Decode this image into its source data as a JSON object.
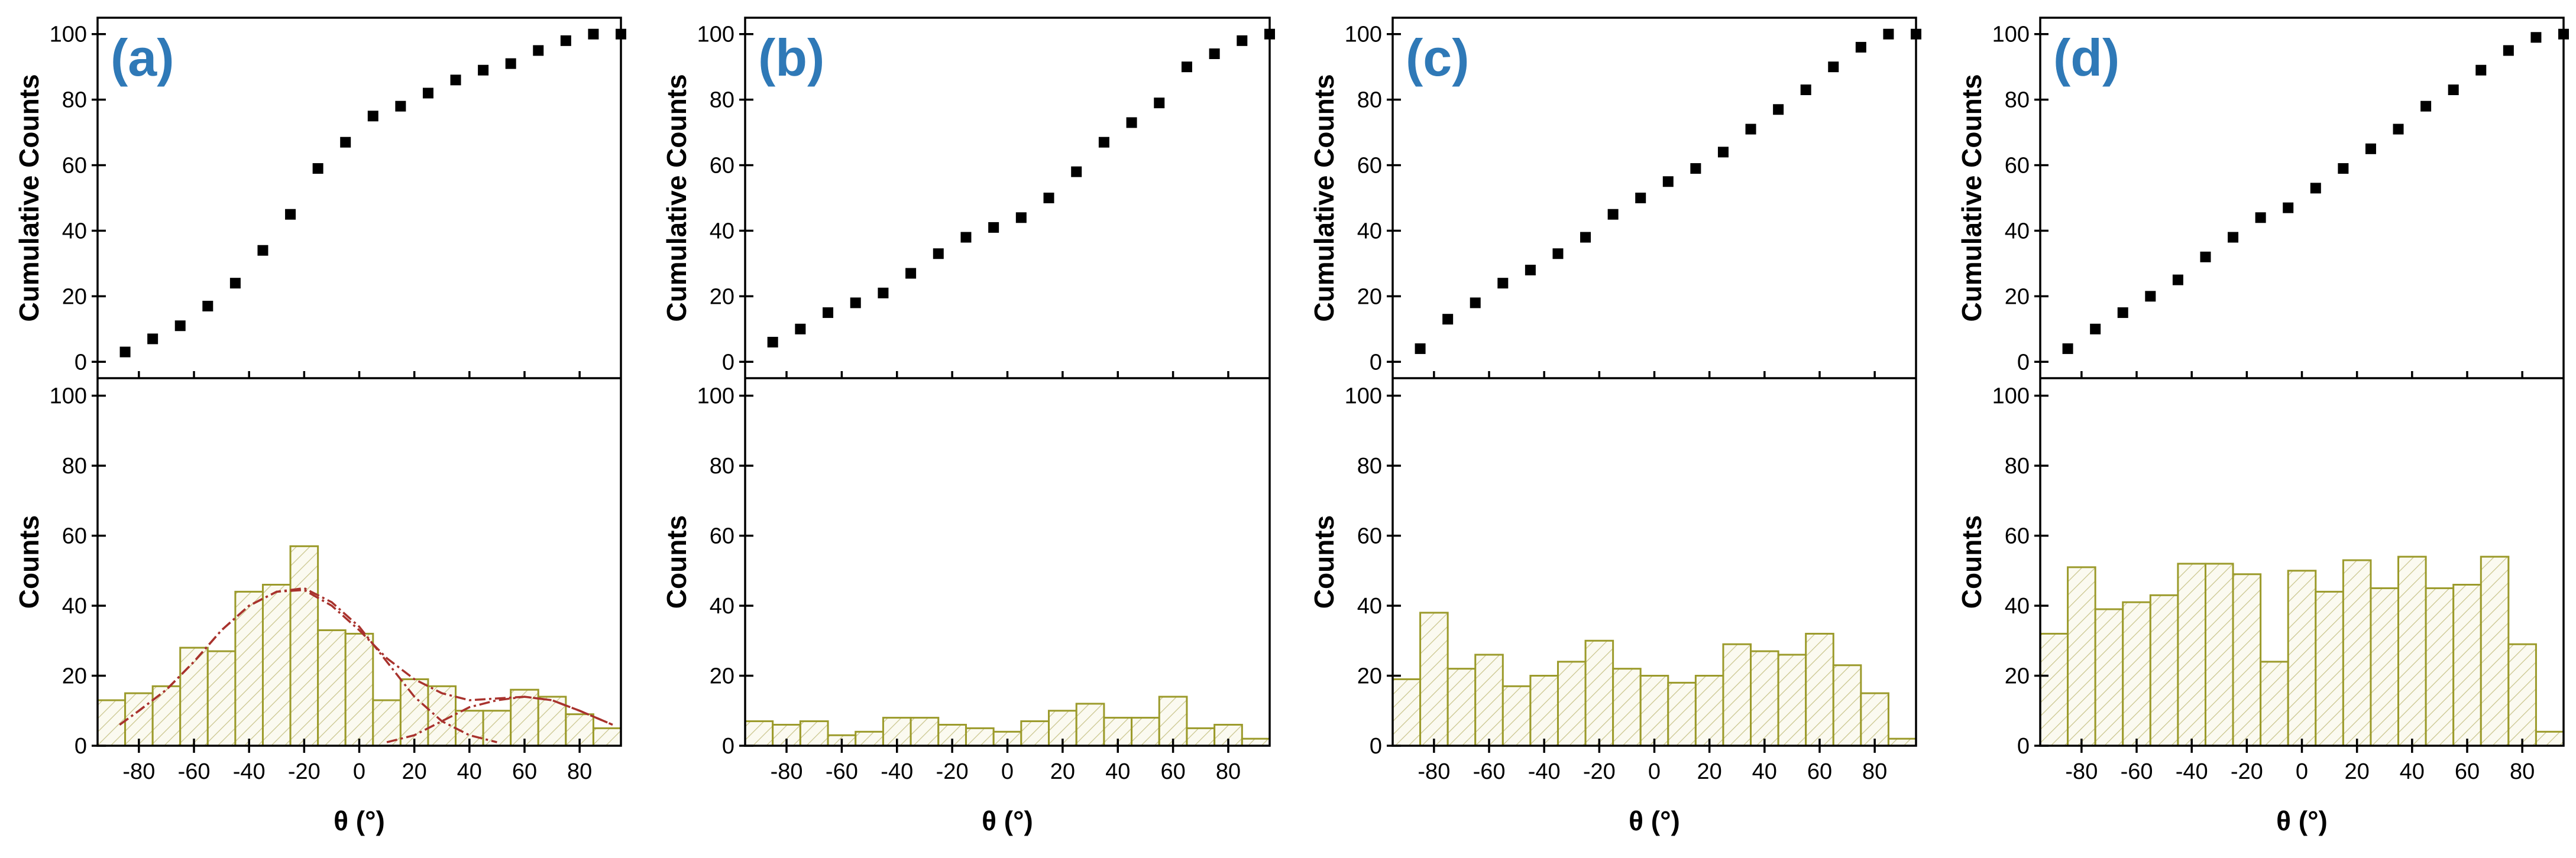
{
  "figure": {
    "xlabel": "θ (°)",
    "colors": {
      "bar_edge": "#9b9a2a",
      "bar_fill": "#fbfaf0",
      "hatch": "#c9c58c",
      "fit_curve": "#a8322d",
      "panel_label": "#2f79b7",
      "point": "#000000",
      "axis": "#000000"
    }
  },
  "chart_data": [
    {
      "panel_label": "(a)",
      "type": "scatter+bar",
      "x_ticks": [
        "-80",
        "-60",
        "-40",
        "-20",
        "0",
        "20",
        "40",
        "60",
        "80"
      ],
      "xlim": [
        -95,
        95
      ],
      "top": {
        "ylabel": "Cumulative Counts",
        "ylim": [
          -5,
          105
        ],
        "y_ticks": [
          "0",
          "20",
          "40",
          "60",
          "80",
          "100"
        ],
        "x": [
          -85,
          -75,
          -65,
          -55,
          -45,
          -35,
          -25,
          -15,
          -5,
          5,
          15,
          25,
          35,
          45,
          55,
          65,
          75,
          85,
          95
        ],
        "values": [
          3,
          7,
          11,
          17,
          24,
          34,
          45,
          59,
          67,
          75,
          78,
          82,
          86,
          89,
          91,
          95,
          98,
          100,
          100
        ]
      },
      "bottom": {
        "ylabel": "Counts",
        "ylim": [
          0,
          105
        ],
        "y_ticks": [
          "0",
          "20",
          "40",
          "60",
          "80",
          "100"
        ],
        "bin_width": 10,
        "x": [
          -90,
          -80,
          -70,
          -60,
          -50,
          -40,
          -30,
          -20,
          -10,
          0,
          10,
          20,
          30,
          40,
          50,
          60,
          70,
          80,
          90
        ],
        "values": [
          13,
          15,
          17,
          28,
          27,
          44,
          46,
          57,
          33,
          32,
          13,
          19,
          17,
          10,
          10,
          16,
          14,
          9,
          5
        ],
        "fit_curves": [
          {
            "name": "total fit",
            "x": [
              -87,
              -80,
              -70,
              -60,
              -50,
              -40,
              -30,
              -20,
              -10,
              0,
              10,
              20,
              30,
              40,
              50,
              60,
              70,
              80,
              92
            ],
            "y": [
              6,
              10,
              16,
              24,
              33,
              40,
              44,
              44.5,
              40,
              33,
              25,
              19,
              15,
              13,
              13.5,
              14,
              13,
              10,
              6
            ]
          },
          {
            "name": "peak 1",
            "x": [
              -87,
              -80,
              -70,
              -60,
              -50,
              -40,
              -30,
              -20,
              -10,
              0,
              10,
              20,
              30,
              40,
              50
            ],
            "y": [
              6,
              10,
              16,
              24,
              33,
              40,
              44,
              45,
              41,
              34,
              24,
              14,
              7,
              3,
              1
            ]
          },
          {
            "name": "peak 2",
            "x": [
              10,
              20,
              30,
              40,
              50,
              60,
              70,
              80,
              92
            ],
            "y": [
              1,
              3,
              7,
              11,
              13,
              14,
              13,
              10,
              6
            ]
          }
        ]
      }
    },
    {
      "panel_label": "(b)",
      "type": "scatter+bar",
      "x_ticks": [
        "-80",
        "-60",
        "-40",
        "-20",
        "0",
        "20",
        "40",
        "60",
        "80"
      ],
      "xlim": [
        -95,
        95
      ],
      "top": {
        "ylabel": "Cumulative Counts",
        "ylim": [
          -5,
          105
        ],
        "y_ticks": [
          "0",
          "20",
          "40",
          "60",
          "80",
          "100"
        ],
        "x": [
          -85,
          -75,
          -65,
          -55,
          -45,
          -35,
          -25,
          -15,
          -5,
          5,
          15,
          25,
          35,
          45,
          55,
          65,
          75,
          85,
          95
        ],
        "values": [
          6,
          10,
          15,
          18,
          21,
          27,
          33,
          38,
          41,
          44,
          50,
          58,
          67,
          73,
          79,
          90,
          94,
          98,
          100
        ]
      },
      "bottom": {
        "ylabel": "Counts",
        "ylim": [
          0,
          105
        ],
        "y_ticks": [
          "0",
          "20",
          "40",
          "60",
          "80",
          "100"
        ],
        "bin_width": 10,
        "x": [
          -90,
          -80,
          -70,
          -60,
          -50,
          -40,
          -30,
          -20,
          -10,
          0,
          10,
          20,
          30,
          40,
          50,
          60,
          70,
          80,
          90
        ],
        "values": [
          7,
          6,
          7,
          3,
          4,
          8,
          8,
          6,
          5,
          4,
          7,
          10,
          12,
          8,
          8,
          14,
          5,
          6,
          2
        ]
      }
    },
    {
      "panel_label": "(c)",
      "type": "scatter+bar",
      "x_ticks": [
        "-80",
        "-60",
        "-40",
        "-20",
        "0",
        "20",
        "40",
        "60",
        "80"
      ],
      "xlim": [
        -95,
        95
      ],
      "top": {
        "ylabel": "Cumulative Counts",
        "ylim": [
          -5,
          105
        ],
        "y_ticks": [
          "0",
          "20",
          "40",
          "60",
          "80",
          "100"
        ],
        "x": [
          -85,
          -75,
          -65,
          -55,
          -45,
          -35,
          -25,
          -15,
          -5,
          5,
          15,
          25,
          35,
          45,
          55,
          65,
          75,
          85,
          95
        ],
        "values": [
          4,
          13,
          18,
          24,
          28,
          33,
          38,
          45,
          50,
          55,
          59,
          64,
          71,
          77,
          83,
          90,
          96,
          100,
          100
        ]
      },
      "bottom": {
        "ylabel": "Counts",
        "ylim": [
          0,
          105
        ],
        "y_ticks": [
          "0",
          "20",
          "40",
          "60",
          "80",
          "100"
        ],
        "bin_width": 10,
        "x": [
          -90,
          -80,
          -70,
          -60,
          -50,
          -40,
          -30,
          -20,
          -10,
          0,
          10,
          20,
          30,
          40,
          50,
          60,
          70,
          80,
          90
        ],
        "values": [
          19,
          38,
          22,
          26,
          17,
          20,
          24,
          30,
          22,
          20,
          18,
          20,
          29,
          27,
          26,
          32,
          23,
          15,
          2
        ]
      }
    },
    {
      "panel_label": "(d)",
      "type": "scatter+bar",
      "x_ticks": [
        "-80",
        "-60",
        "-40",
        "-20",
        "0",
        "20",
        "40",
        "60",
        "80"
      ],
      "xlim": [
        -95,
        95
      ],
      "top": {
        "ylabel": "Cumulative Counts",
        "ylim": [
          -5,
          105
        ],
        "y_ticks": [
          "0",
          "20",
          "40",
          "60",
          "80",
          "100"
        ],
        "x": [
          -85,
          -75,
          -65,
          -55,
          -45,
          -35,
          -25,
          -15,
          -5,
          5,
          15,
          25,
          35,
          45,
          55,
          65,
          75,
          85,
          95
        ],
        "values": [
          4,
          10,
          15,
          20,
          25,
          32,
          38,
          44,
          47,
          53,
          59,
          65,
          71,
          78,
          83,
          89,
          95,
          99,
          100
        ]
      },
      "bottom": {
        "ylabel": "Counts",
        "ylim": [
          0,
          105
        ],
        "y_ticks": [
          "0",
          "20",
          "40",
          "60",
          "80",
          "100"
        ],
        "bin_width": 10,
        "x": [
          -90,
          -80,
          -70,
          -60,
          -50,
          -40,
          -30,
          -20,
          -10,
          0,
          10,
          20,
          30,
          40,
          50,
          60,
          70,
          80,
          90
        ],
        "values": [
          32,
          51,
          39,
          41,
          43,
          52,
          52,
          49,
          24,
          50,
          44,
          53,
          45,
          54,
          45,
          46,
          54,
          29,
          4
        ]
      }
    }
  ]
}
